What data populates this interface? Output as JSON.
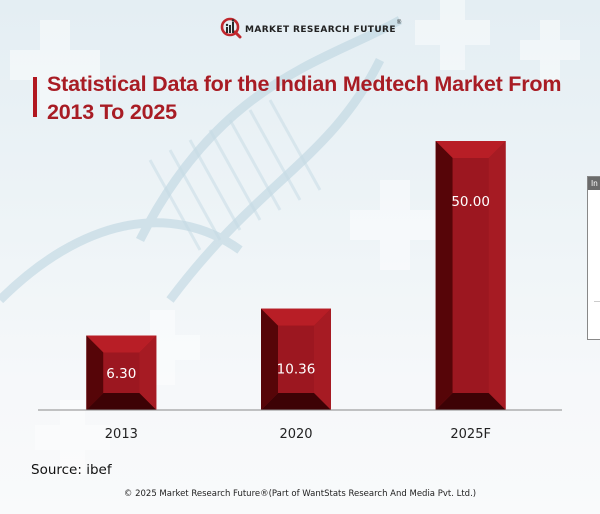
{
  "brand": {
    "name": "MARKET RESEARCH FUTURE",
    "registered_mark": "®",
    "accent_color": "#a81c24"
  },
  "side_panel": {
    "header_text": "In"
  },
  "chart_data": {
    "type": "bar",
    "title": "Statistical Data for the Indian Medtech Market From 2013 To 2025",
    "categories": [
      "2013",
      "2020",
      "2025F"
    ],
    "values": [
      6.3,
      10.36,
      50.0
    ],
    "value_labels": [
      "6.30",
      "10.36",
      "50.00"
    ],
    "xlabel": "",
    "ylabel": "",
    "grid": false,
    "legend": "none",
    "bar_color": "#a31a22"
  },
  "footer": {
    "source": "Source: ibef",
    "copyright": "© 2025 Market Research Future®(Part of WantStats Research And Media Pvt. Ltd.)"
  }
}
